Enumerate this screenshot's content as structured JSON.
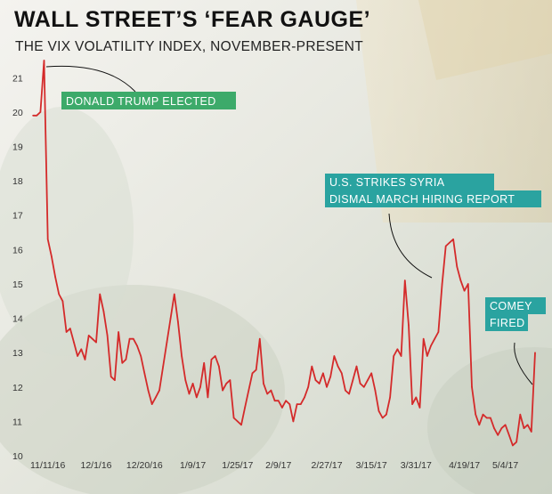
{
  "header": {
    "title": "WALL STREET’S ‘FEAR GAUGE’",
    "subtitle": "THE VIX VOLATILITY INDEX, NOVEMBER-PRESENT"
  },
  "colors": {
    "line": "#d42a2a",
    "annotation_green": "#3daa6a",
    "annotation_teal": "#2aa3a0"
  },
  "chart_data": {
    "type": "line",
    "title": "WALL STREET’S ‘FEAR GAUGE’",
    "subtitle": "THE VIX VOLATILITY INDEX, NOVEMBER-PRESENT",
    "xlabel": "",
    "ylabel": "",
    "ylim": [
      10,
      21.5
    ],
    "yticks": [
      10,
      11,
      12,
      13,
      14,
      15,
      16,
      17,
      18,
      19,
      20,
      21
    ],
    "xtick_labels": [
      "11/11/16",
      "12/1/16",
      "12/20/16",
      "1/9/17",
      "1/25/17",
      "2/9/17",
      "2/27/17",
      "3/15/17",
      "3/31/17",
      "4/19/17",
      "5/4/17"
    ],
    "xtick_index": [
      4,
      17,
      30,
      43,
      55,
      66,
      79,
      91,
      103,
      116,
      127
    ],
    "grid": false,
    "series": [
      {
        "values": [
          19.9,
          19.9,
          20.0,
          21.5,
          16.3,
          15.8,
          15.2,
          14.7,
          14.5,
          13.6,
          13.7,
          13.3,
          12.9,
          13.1,
          12.8,
          13.5,
          13.4,
          13.3,
          14.7,
          14.2,
          13.5,
          12.3,
          12.2,
          13.6,
          12.7,
          12.8,
          13.4,
          13.4,
          13.2,
          12.9,
          12.4,
          11.9,
          11.5,
          11.7,
          11.9,
          12.6,
          13.3,
          14.0,
          14.7,
          13.9,
          12.9,
          12.2,
          11.8,
          12.1,
          11.7,
          12.0,
          12.7,
          11.7,
          12.8,
          12.9,
          12.6,
          11.9,
          12.1,
          12.2,
          11.1,
          11.0,
          10.9,
          11.4,
          11.9,
          12.4,
          12.5,
          13.4,
          12.1,
          11.8,
          11.9,
          11.6,
          11.6,
          11.4,
          11.6,
          11.5,
          11.0,
          11.5,
          11.5,
          11.7,
          12.0,
          12.6,
          12.2,
          12.1,
          12.4,
          12.0,
          12.3,
          12.9,
          12.6,
          12.4,
          11.9,
          11.8,
          12.2,
          12.6,
          12.1,
          12.0,
          12.2,
          12.4,
          11.9,
          11.3,
          11.1,
          11.2,
          11.7,
          12.9,
          13.1,
          12.9,
          15.1,
          13.8,
          11.5,
          11.7,
          11.4,
          13.4,
          12.9,
          13.2,
          13.4,
          13.6,
          15.0,
          16.1,
          16.2,
          16.3,
          15.5,
          15.1,
          14.8,
          15.0,
          12.0,
          11.2,
          10.9,
          11.2,
          11.1,
          11.1,
          10.8,
          10.6,
          10.8,
          10.9,
          10.6,
          10.3,
          10.4,
          11.2,
          10.8,
          10.9,
          10.7,
          13.0
        ]
      }
    ],
    "annotations": [
      {
        "lines": [
          "DONALD TRUMP ELECTED"
        ]
      },
      {
        "lines": [
          "U.S. STRIKES SYRIA",
          "DISMAL MARCH HIRING REPORT"
        ]
      },
      {
        "lines": [
          "COMEY",
          "FIRED"
        ]
      }
    ]
  }
}
